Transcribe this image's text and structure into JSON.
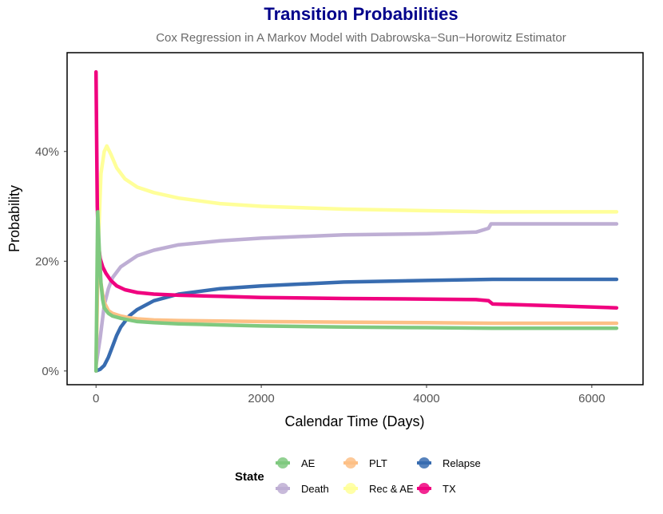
{
  "colors": {
    "title": "#00008B",
    "subtitle": "#6b6b6b"
  },
  "chart_data": {
    "type": "line",
    "title": "Transition Probabilities",
    "subtitle": "Cox Regression in A Markov Model with Dabrowska−Sun−Horowitz Estimator",
    "xlabel": "Calendar Time (Days)",
    "ylabel": "Probability",
    "xlim": [
      -350,
      6620
    ],
    "ylim": [
      -0.025,
      0.58
    ],
    "xticks": [
      0,
      2000,
      4000,
      6000
    ],
    "xtick_labels": [
      "0",
      "2000",
      "4000",
      "6000"
    ],
    "yticks": [
      0,
      0.2,
      0.4
    ],
    "ytick_labels": [
      "0%",
      "20%",
      "40%"
    ],
    "legend_title": "State",
    "legend_position": "bottom",
    "series": [
      {
        "name": "Rec & AE",
        "color": "#FFFF99",
        "x": [
          0,
          20,
          60,
          100,
          130,
          180,
          250,
          350,
          500,
          700,
          1000,
          1500,
          2000,
          3000,
          4000,
          4800,
          5500,
          6300
        ],
        "y": [
          0.0,
          0.2,
          0.36,
          0.4,
          0.41,
          0.395,
          0.37,
          0.35,
          0.335,
          0.325,
          0.315,
          0.305,
          0.3,
          0.295,
          0.292,
          0.29,
          0.29,
          0.29
        ]
      },
      {
        "name": "Death",
        "color": "#BEAED4",
        "x": [
          0,
          50,
          100,
          150,
          200,
          300,
          400,
          500,
          700,
          1000,
          1500,
          2000,
          2500,
          3000,
          4000,
          4600,
          4750,
          4780,
          5500,
          6300
        ],
        "y": [
          0.01,
          0.06,
          0.12,
          0.15,
          0.17,
          0.19,
          0.2,
          0.21,
          0.22,
          0.23,
          0.237,
          0.242,
          0.245,
          0.248,
          0.25,
          0.253,
          0.26,
          0.268,
          0.268,
          0.268
        ]
      },
      {
        "name": "Relapse",
        "color": "#386CB0",
        "x": [
          0,
          50,
          100,
          150,
          200,
          250,
          300,
          400,
          500,
          700,
          1000,
          1500,
          2000,
          3000,
          4000,
          4800,
          5500,
          6300
        ],
        "y": [
          0.0,
          0.003,
          0.01,
          0.025,
          0.045,
          0.065,
          0.08,
          0.1,
          0.112,
          0.128,
          0.14,
          0.15,
          0.155,
          0.162,
          0.165,
          0.167,
          0.167,
          0.167
        ]
      },
      {
        "name": "TX",
        "color": "#F0027F",
        "x": [
          0,
          15,
          30,
          50,
          80,
          120,
          180,
          250,
          350,
          500,
          700,
          1000,
          1500,
          2000,
          3000,
          4000,
          4600,
          4750,
          4800,
          5500,
          6300
        ],
        "y": [
          0.545,
          0.3,
          0.23,
          0.205,
          0.19,
          0.178,
          0.165,
          0.155,
          0.148,
          0.143,
          0.14,
          0.138,
          0.136,
          0.134,
          0.132,
          0.131,
          0.13,
          0.128,
          0.122,
          0.119,
          0.115
        ]
      },
      {
        "name": "PLT",
        "color": "#FDC086",
        "x": [
          0,
          20,
          40,
          60,
          80,
          100,
          150,
          200,
          300,
          400,
          500,
          700,
          1000,
          1500,
          2000,
          3000,
          4000,
          4800,
          5500,
          6300
        ],
        "y": [
          0.0,
          0.17,
          0.19,
          0.16,
          0.14,
          0.125,
          0.11,
          0.105,
          0.1,
          0.097,
          0.095,
          0.093,
          0.092,
          0.091,
          0.09,
          0.089,
          0.088,
          0.087,
          0.087,
          0.087
        ]
      },
      {
        "name": "AE",
        "color": "#7FC97F",
        "x": [
          0,
          20,
          40,
          60,
          80,
          100,
          150,
          200,
          300,
          400,
          500,
          700,
          1000,
          1500,
          2000,
          3000,
          4000,
          4800,
          5500,
          6300
        ],
        "y": [
          0.0,
          0.29,
          0.22,
          0.16,
          0.13,
          0.115,
          0.105,
          0.1,
          0.096,
          0.093,
          0.09,
          0.088,
          0.086,
          0.084,
          0.082,
          0.08,
          0.079,
          0.078,
          0.078,
          0.078
        ]
      }
    ],
    "legend_items": [
      {
        "name": "AE",
        "color": "#7FC97F"
      },
      {
        "name": "Death",
        "color": "#BEAED4"
      },
      {
        "name": "PLT",
        "color": "#FDC086"
      },
      {
        "name": "Rec & AE",
        "color": "#FFFF99"
      },
      {
        "name": "Relapse",
        "color": "#386CB0"
      },
      {
        "name": "TX",
        "color": "#F0027F"
      }
    ]
  }
}
